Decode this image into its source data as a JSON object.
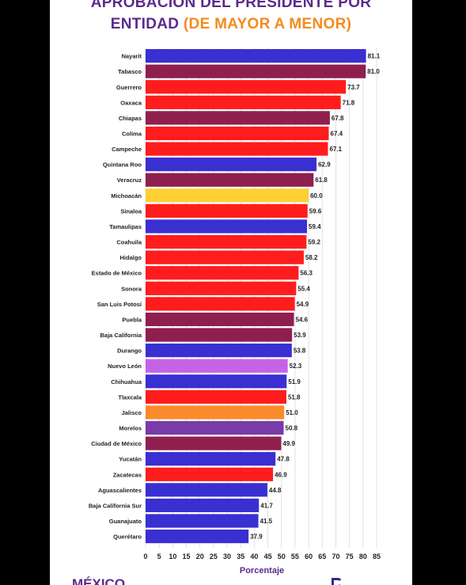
{
  "title": {
    "line1": "APROBACIÓN DEL PRESIDENTE POR",
    "line2_main": "ENTIDAD",
    "line2_accent": "(DE MAYOR A MENOR)"
  },
  "footer": {
    "left": "MÉXICO",
    "middle": "",
    "right": ""
  },
  "chart_data": {
    "type": "bar",
    "orientation": "horizontal",
    "categories": [
      "Nayarit",
      "Tabasco",
      "Guerrero",
      "Oaxaca",
      "Chiapas",
      "Colima",
      "Campeche",
      "Quintana Roo",
      "Veracruz",
      "Michoacán",
      "Sinaloa",
      "Tamaulipas",
      "Coahuila",
      "Hidalgo",
      "Estado de México",
      "Sonora",
      "San Luis Potosí",
      "Puebla",
      "Baja California",
      "Durango",
      "Nuevo León",
      "Chihuahua",
      "Tlaxcala",
      "Jalisco",
      "Morelos",
      "Ciudad de México",
      "Yucatán",
      "Zacatecas",
      "Aguascalientes",
      "Baja California Sur",
      "Guanajuato",
      "Querétaro"
    ],
    "values": [
      81.1,
      81.0,
      73.7,
      71.8,
      67.8,
      67.4,
      67.1,
      62.9,
      61.8,
      60.0,
      59.6,
      59.4,
      59.2,
      58.2,
      56.3,
      55.4,
      54.9,
      54.6,
      53.9,
      53.8,
      52.3,
      51.9,
      51.8,
      51.0,
      50.8,
      49.9,
      47.8,
      46.9,
      44.8,
      41.7,
      41.5,
      37.9
    ],
    "value_labels": [
      "81.1",
      "81.0",
      "73.7",
      "71.8",
      "67.8",
      "67.4",
      "67.1",
      "62.9",
      "61.8",
      "60.0",
      "59.6",
      "59.4",
      "59.2",
      "58.2",
      "56.3",
      "55.4",
      "54.9",
      "54.6",
      "53.9",
      "53.8",
      "52.3",
      "51.9",
      "51.8",
      "51.0",
      "50.8",
      "49.9",
      "47.8",
      "46.9",
      "44.8",
      "41.7",
      "41.5",
      "37.9"
    ],
    "colors": [
      "#3a2fd0",
      "#8f1f4f",
      "#ff1c1c",
      "#ff1c1c",
      "#8f1f4f",
      "#ff1c1c",
      "#ff1c1c",
      "#3a2fd0",
      "#8f1f4f",
      "#ffd034",
      "#ff1c1c",
      "#3a2fd0",
      "#ff1c1c",
      "#ff1c1c",
      "#ff1c1c",
      "#ff1c1c",
      "#ff1c1c",
      "#8f1f4f",
      "#8f1f4f",
      "#3a2fd0",
      "#c563e6",
      "#3a2fd0",
      "#ff1c1c",
      "#fb8a2a",
      "#7a3aa8",
      "#8f1f4f",
      "#3a2fd0",
      "#ff1c1c",
      "#3a2fd0",
      "#3a2fd0",
      "#3a2fd0",
      "#3a2fd0"
    ],
    "xlabel": "Porcentaje",
    "ylabel": "",
    "xlim": [
      0,
      85
    ],
    "xticks": [
      "0",
      "5",
      "10",
      "15",
      "20",
      "25",
      "30",
      "35",
      "40",
      "45",
      "50",
      "55",
      "60",
      "65",
      "70",
      "75",
      "80",
      "85"
    ],
    "grid": true,
    "label_color": "#5b2a8c"
  }
}
